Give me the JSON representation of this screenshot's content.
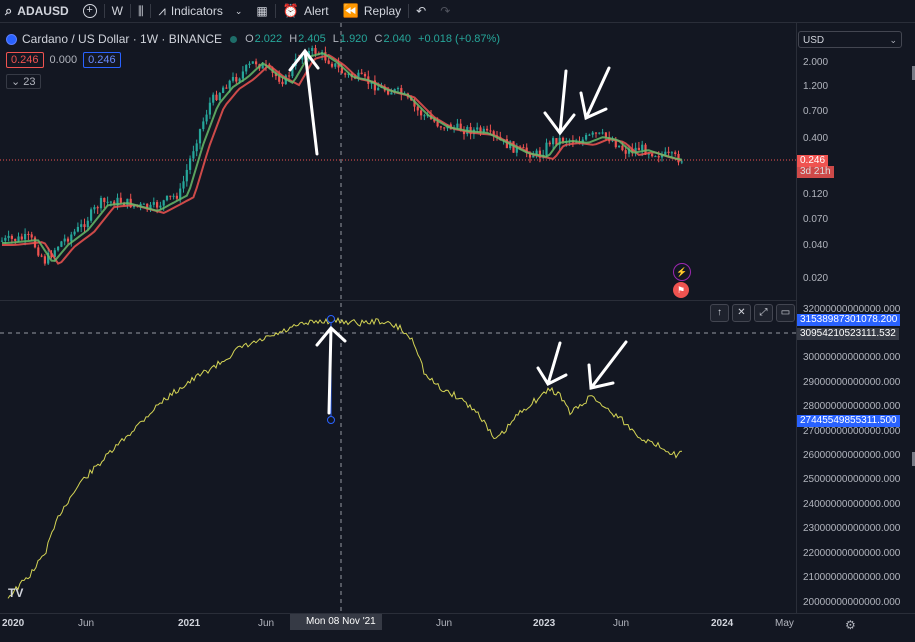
{
  "toolbar": {
    "symbol": "ADAUSD",
    "add_icon": "plus-circle-icon",
    "interval": "W",
    "indicators_label": "Indicators",
    "alert_label": "Alert",
    "replay_label": "Replay"
  },
  "legend": {
    "title": "Cardano / US Dollar · 1W · BINANCE",
    "o_label": "O",
    "o": "2.022",
    "h_label": "H",
    "h": "2.405",
    "l_label": "L",
    "l": "1.920",
    "c_label": "C",
    "c": "2.040",
    "change": "+0.018 (+0.87%)",
    "bid": "0.246",
    "spread": "0.000",
    "ask": "0.246",
    "indicator_count": "23"
  },
  "price_axis": {
    "currency": "USD",
    "labels": [
      "2.000",
      "1.200",
      "0.700",
      "0.400",
      "0.120",
      "0.070",
      "0.040",
      "0.020"
    ],
    "last_price": "0.246",
    "countdown": "3d 21h"
  },
  "indicator_axis": {
    "labels": [
      "32000000000000.000",
      "30000000000000.000",
      "29000000000000.000",
      "28000000000000.000",
      "27000000000000.000",
      "26000000000000.000",
      "25000000000000.000",
      "24000000000000.000",
      "23000000000000.000",
      "22000000000000.000",
      "21000000000000.000",
      "20000000000000.000"
    ],
    "tag_top": "31538987301078.200",
    "tag_crosshair": "30954210523111.532",
    "tag_current": "27445549855311.500"
  },
  "time_axis": {
    "labels": [
      "2020",
      "Jun",
      "2021",
      "Jun",
      "Jun",
      "2023",
      "Jun",
      "2024",
      "May"
    ],
    "crosshair_date": "Mon 08 Nov '21"
  },
  "colors": {
    "background": "#131722",
    "up": "#26a69a",
    "down": "#ef5350",
    "ema_fast": "#66bb6a",
    "ema_slow": "#ef5350",
    "indicator_line": "#d4d455",
    "accent": "#2962ff"
  },
  "logo": "TV"
}
